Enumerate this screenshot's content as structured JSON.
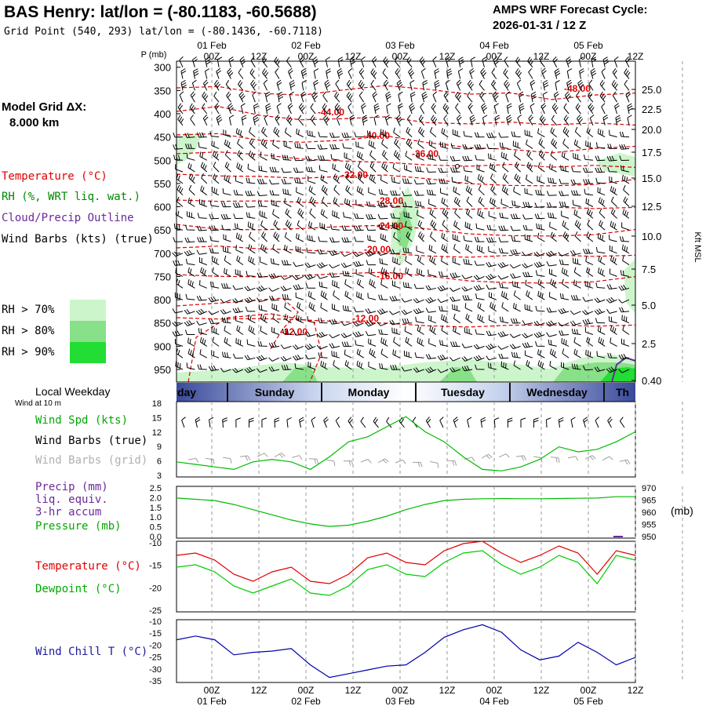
{
  "header": {
    "title": "BAS Henry:  lat/lon = (-80.1183, -60.5688)",
    "grid_point": "Grid Point (540, 293) lat/lon = (-80.1436, -60.7118)",
    "cycle_line1": "AMPS WRF Forecast Cycle:",
    "cycle_line2": "2026-01-31 / 12  Z"
  },
  "left_legend": {
    "model_grid_line1": "Model Grid ΔX:",
    "model_grid_line2": "8.000 km",
    "temperature": "Temperature (°C)",
    "rh": "RH (%, WRT liq. wat.)",
    "cloud": "Cloud/Precip Outline",
    "wind_barbs": "Wind Barbs (kts) (true)",
    "rh70": "RH > 70%",
    "rh80": "RH > 80%",
    "rh90": "RH > 90%",
    "local_weekday": "Local Weekday",
    "wind_at": "Wind at 10 m",
    "wind_spd": "Wind Spd (kts)",
    "wind_barbs_true": "Wind Barbs (true)",
    "wind_barbs_grid": "Wind Barbs (grid)",
    "precip": "Precip (mm)",
    "liq_equiv": "liq. equiv.",
    "accum": "3-hr accum",
    "pressure": "Pressure (mb)",
    "temperature2": "Temperature (°C)",
    "dewpoint": "Dewpoint (°C)",
    "wind_chill": "Wind Chill T (°C)"
  },
  "colors": {
    "temperature": "#e00000",
    "rh": "#008800",
    "cloud": "#6a2a9a",
    "wind": "#000000",
    "wind_grid": "#a0a0a0",
    "precip_label": "#6a2a9a",
    "pressure_line": "#00bb00",
    "dewpoint_line": "#00cc00",
    "windchill_line": "#0000aa",
    "windchill_label": "#1a1a9a",
    "rh70": "#ccf5cc",
    "rh80": "#88e088",
    "rh90": "#22dd33"
  },
  "time_axis": {
    "top_dates": [
      "01 Feb",
      "02 Feb",
      "03 Feb",
      "04 Feb",
      "05 Feb"
    ],
    "top_times": [
      "00Z",
      "12Z",
      "00Z",
      "12Z",
      "00Z",
      "12Z",
      "00Z",
      "12Z",
      "00Z",
      "12Z"
    ],
    "bottom_times": [
      "00Z",
      "12Z",
      "00Z",
      "12Z",
      "00Z",
      "12Z",
      "00Z",
      "12Z",
      "00Z",
      "12Z"
    ],
    "bottom_dates": [
      "01 Feb",
      "02 Feb",
      "03 Feb",
      "04 Feb",
      "05 Feb"
    ]
  },
  "weekdays": [
    "urday",
    "Sunday",
    "Monday",
    "Tuesday",
    "Wednesday",
    "Th"
  ],
  "chart_data": [
    {
      "type": "heatmap",
      "name": "vertical-cross-section",
      "p_axis_label": "P (mb)",
      "pressure_ticks": [
        "300",
        "350",
        "400",
        "450",
        "500",
        "550",
        "600",
        "650",
        "700",
        "750",
        "800",
        "850",
        "900",
        "950"
      ],
      "height_ticks": [
        "25.0",
        "22.5",
        "20.0",
        "17.5",
        "15.0",
        "12.5",
        "10.0",
        "7.5",
        "5.0",
        "2.5",
        "0.40"
      ],
      "height_axis_label": "Kft MSL",
      "temperature_contours": [
        {
          "label": "-48.00",
          "values": [
            -47,
            -46,
            -48,
            -49,
            -48,
            -47,
            -48,
            -49,
            -48,
            -50,
            -49,
            -49
          ]
        },
        {
          "label": "-44.00",
          "values": [
            -42,
            -41,
            -44,
            -45,
            -44,
            -43,
            -45,
            -46,
            -46,
            -47,
            -46,
            -46
          ]
        },
        {
          "label": "-40.00",
          "values": [
            -38,
            -37,
            -39,
            -40,
            -40,
            -39,
            -41,
            -42,
            -42,
            -43,
            -42,
            -42
          ]
        },
        {
          "label": "-36.00",
          "values": [
            -34,
            -34,
            -35,
            -36,
            -36,
            -36,
            -37,
            -38,
            -38,
            -39,
            -38,
            -38
          ]
        },
        {
          "label": "-32.00",
          "values": [
            -31,
            -31,
            -31,
            -32,
            -32,
            -32,
            -33,
            -34,
            -34,
            -34,
            -34,
            -33
          ]
        },
        {
          "label": "-28.00",
          "values": [
            -27,
            -28,
            -28,
            -28,
            -28,
            -28,
            -29,
            -30,
            -30,
            -30,
            -30,
            -29
          ]
        },
        {
          "label": "-24.00",
          "values": [
            -23,
            -24,
            -24,
            -24,
            -24,
            -24,
            -25,
            -26,
            -26,
            -26,
            -26,
            -25
          ]
        },
        {
          "label": "-20.00",
          "values": [
            -19,
            -19,
            -20,
            -20,
            -20,
            -20,
            -21,
            -22,
            -22,
            -22,
            -22,
            -21
          ]
        },
        {
          "label": "-16.00",
          "values": [
            -16,
            -16,
            -16,
            -16,
            -16,
            -16,
            -17,
            -18,
            -18,
            -18,
            -18,
            -17
          ]
        },
        {
          "label": "-12.00",
          "values": [
            -11,
            -12,
            -12,
            -12,
            -12,
            -12,
            -13,
            -14,
            -14,
            -14,
            -14,
            -13
          ]
        }
      ]
    },
    {
      "type": "line",
      "name": "wind-speed",
      "title": "Wind Spd (kts)",
      "ylim": [
        3,
        18
      ],
      "yticks": [
        "18",
        "15",
        "12",
        "9",
        "6",
        "3"
      ],
      "x_hours": [
        0,
        6,
        12,
        18,
        24,
        30,
        36,
        42,
        48,
        54,
        60,
        66,
        72,
        78,
        84,
        90,
        96,
        102,
        108,
        114,
        120,
        126,
        132,
        138,
        144
      ],
      "series": [
        {
          "name": "Wind Spd (kts)",
          "values": [
            6,
            5.5,
            5,
            4.5,
            6,
            6.5,
            6,
            4.5,
            7,
            10,
            11,
            13,
            15,
            12,
            10,
            7,
            4.5,
            4.2,
            5,
            6.5,
            9,
            8,
            8.5,
            10,
            12
          ]
        }
      ]
    },
    {
      "type": "line",
      "name": "precip-pressure",
      "title": "Pressure (mb)",
      "ylim_left": [
        0,
        2.5
      ],
      "ylim_right": [
        950,
        970
      ],
      "yticks_left": [
        "2.5",
        "2.0",
        "1.5",
        "1.0",
        "0.5",
        "0.0"
      ],
      "yticks_right": [
        "970",
        "965",
        "960",
        "955",
        "950"
      ],
      "right_axis_label": "(mb)",
      "x_hours": [
        0,
        6,
        12,
        18,
        24,
        30,
        36,
        42,
        48,
        54,
        60,
        66,
        72,
        78,
        84,
        90,
        96,
        102,
        108,
        114,
        120,
        126,
        132,
        138,
        144
      ],
      "series": [
        {
          "name": "Pressure (mb)",
          "values": [
            965.5,
            965,
            964.5,
            963,
            961,
            959,
            957,
            955.5,
            954.5,
            955,
            956.5,
            958.5,
            961,
            963,
            964.5,
            965,
            965.2,
            965.3,
            965.2,
            965.2,
            965.3,
            965.4,
            965.5,
            966,
            966
          ]
        }
      ]
    },
    {
      "type": "line",
      "name": "temperature-dewpoint",
      "ylim": [
        -25,
        -10
      ],
      "yticks": [
        "-10",
        "-15",
        "-20",
        "-25"
      ],
      "x_hours": [
        0,
        6,
        12,
        18,
        24,
        30,
        36,
        42,
        48,
        54,
        60,
        66,
        72,
        78,
        84,
        90,
        96,
        102,
        108,
        114,
        120,
        126,
        132,
        138,
        144
      ],
      "series": [
        {
          "name": "Temperature (°C)",
          "values": [
            -13,
            -12.5,
            -14,
            -17,
            -18.5,
            -16.5,
            -15.5,
            -18.5,
            -19,
            -17,
            -13.5,
            -12.5,
            -14.5,
            -15,
            -12,
            -10.5,
            -10,
            -12.5,
            -14.5,
            -13,
            -11,
            -12.5,
            -17,
            -12,
            -13
          ]
        },
        {
          "name": "Dewpoint (°C)",
          "values": [
            -15.5,
            -15,
            -16.5,
            -19.5,
            -21,
            -19.5,
            -18,
            -21,
            -21.5,
            -19.5,
            -16,
            -15,
            -17,
            -17.5,
            -14.5,
            -12.5,
            -12,
            -15,
            -17,
            -15.5,
            -13,
            -14.5,
            -19,
            -13,
            -14
          ]
        }
      ]
    },
    {
      "type": "line",
      "name": "wind-chill",
      "ylim": [
        -35,
        -10
      ],
      "yticks": [
        "-10",
        "-15",
        "-20",
        "-25",
        "-30",
        "-35"
      ],
      "x_hours": [
        0,
        6,
        12,
        18,
        24,
        30,
        36,
        42,
        48,
        54,
        60,
        66,
        72,
        78,
        84,
        90,
        96,
        102,
        108,
        114,
        120,
        126,
        132,
        138,
        144
      ],
      "series": [
        {
          "name": "Wind Chill T (°C)",
          "values": [
            -18,
            -16.5,
            -18,
            -24,
            -23,
            -22.5,
            -21.5,
            -28,
            -33,
            -31.5,
            -30,
            -28.5,
            -28,
            -23,
            -17,
            -14,
            -12,
            -15,
            -22,
            -26,
            -24.5,
            -19,
            -23,
            -28,
            -25
          ]
        }
      ]
    }
  ]
}
